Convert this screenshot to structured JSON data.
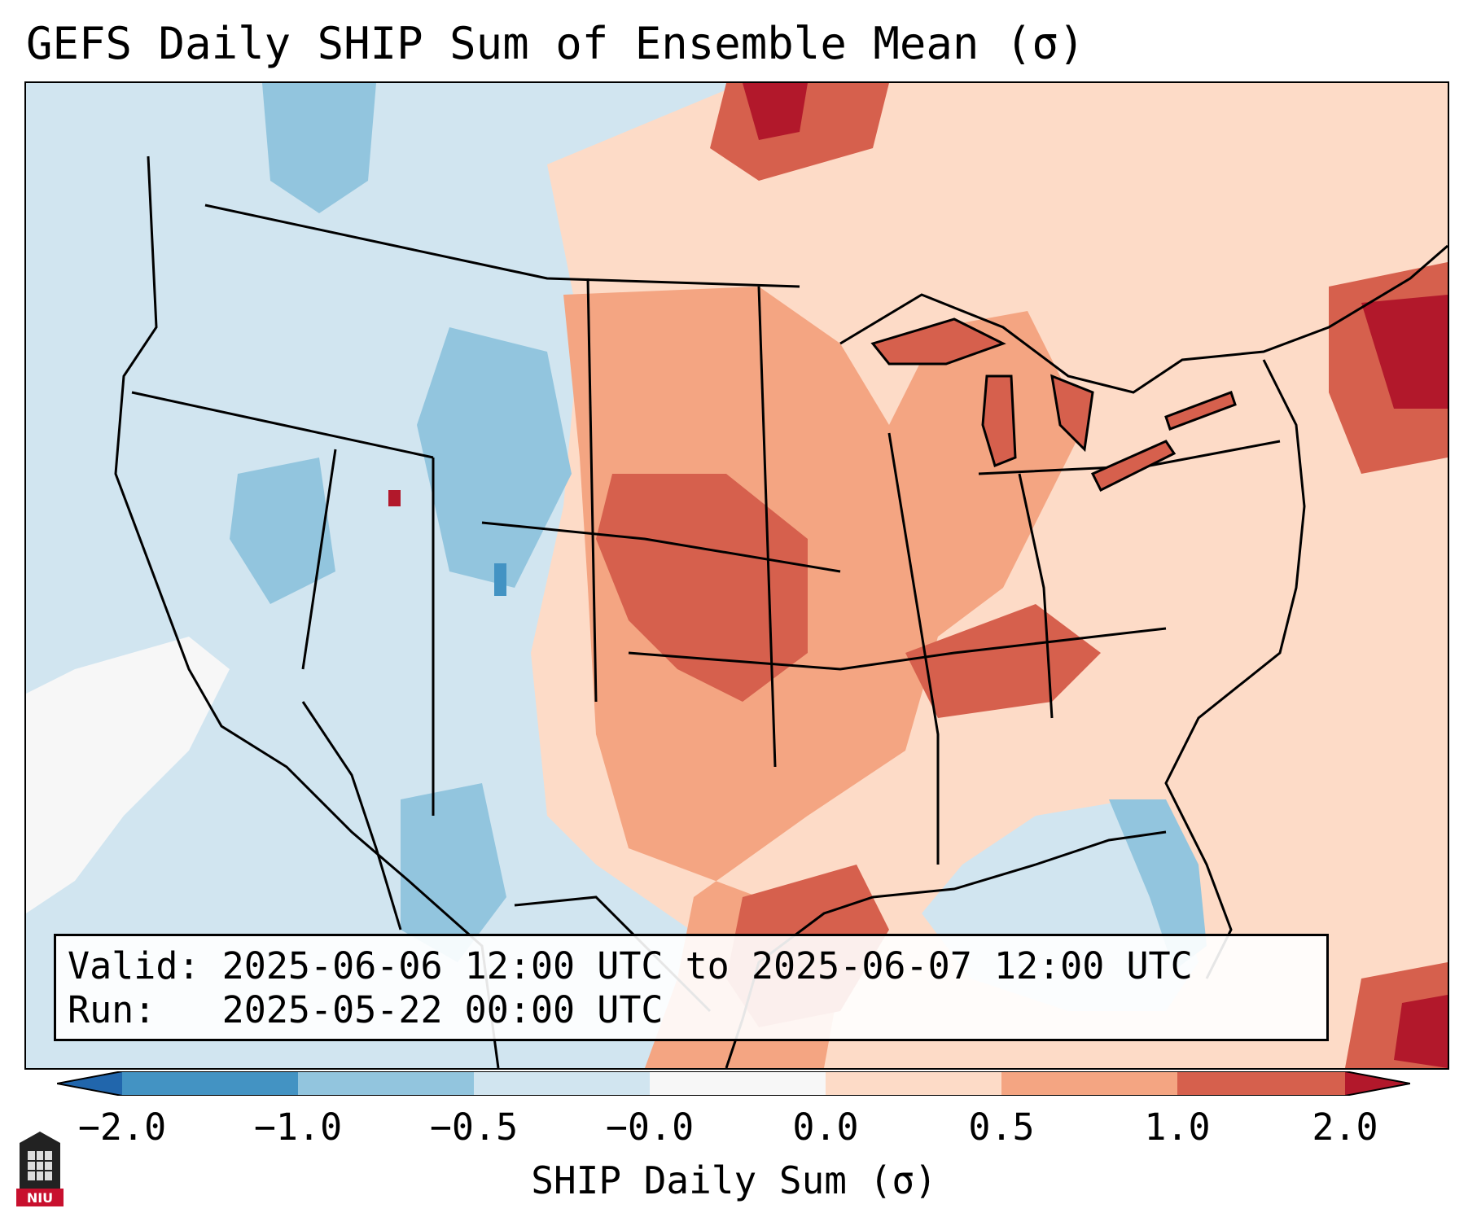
{
  "title": "GEFS Daily SHIP Sum of Ensemble Mean (σ)",
  "info": {
    "valid_label": "Valid:",
    "valid_range": "2025-06-06 12:00 UTC to 2025-06-07 12:00 UTC",
    "run_label": "Run:",
    "run_time": "2025-05-22 00:00 UTC"
  },
  "colorbar": {
    "label": "SHIP Daily Sum (σ)",
    "ticks": [
      "−2.0",
      "−1.0",
      "−0.5",
      "−0.0",
      "0.0",
      "0.5",
      "1.0",
      "2.0"
    ],
    "bins": [
      {
        "color": "#4393c3"
      },
      {
        "color": "#92c5de"
      },
      {
        "color": "#d1e5f0"
      },
      {
        "color": "#f7f7f7"
      },
      {
        "color": "#fddbc7"
      },
      {
        "color": "#f4a582"
      },
      {
        "color": "#d6604d"
      }
    ],
    "under_color": "#2166ac",
    "over_color": "#b2182b"
  },
  "logo": {
    "text": "NIU",
    "color": "#c8102e"
  },
  "colors": {
    "ocean_background": "#d1e5f0",
    "coast_lines": "#000000"
  }
}
